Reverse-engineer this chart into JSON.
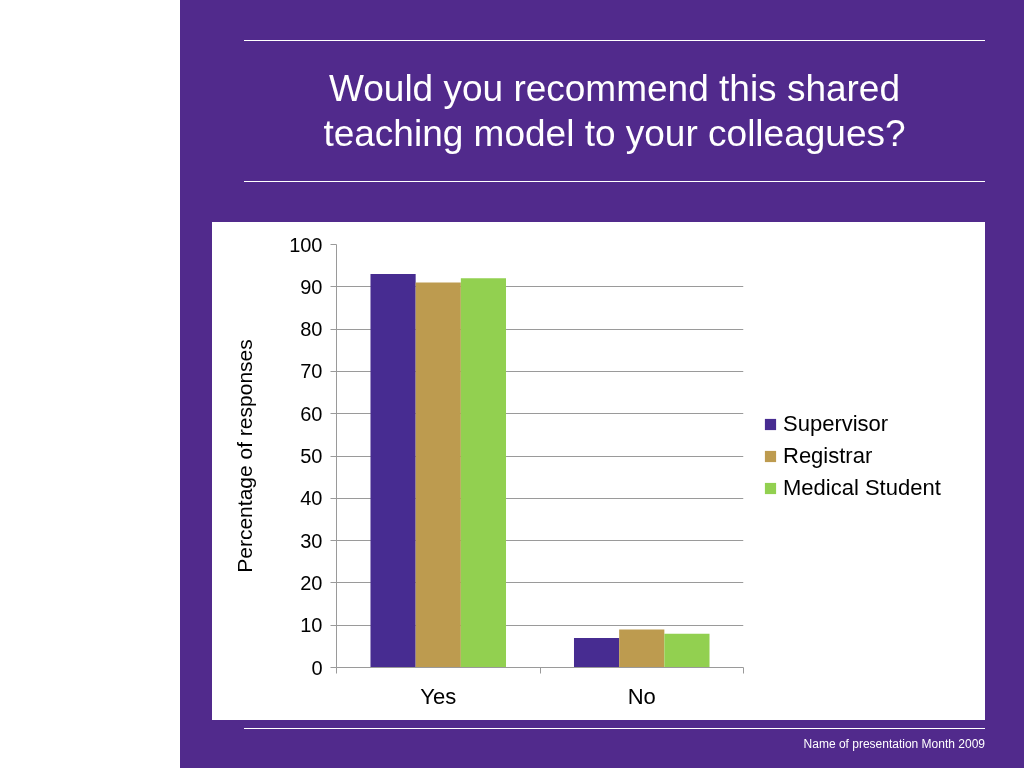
{
  "chart_data": {
    "type": "bar",
    "title": "Would you recommend this shared teaching model to your colleagues?",
    "categories": [
      "Yes",
      "No"
    ],
    "series": [
      {
        "name": "Supervisor",
        "color": "#472c91",
        "values": [
          93,
          7
        ]
      },
      {
        "name": "Registrar",
        "color": "#bd9b4f",
        "values": [
          91,
          9
        ]
      },
      {
        "name": "Medical Student",
        "color": "#92d050",
        "values": [
          92,
          8
        ]
      }
    ],
    "ylabel": "Percentage of responses",
    "ylim": [
      0,
      100
    ],
    "yticks": [
      0,
      10,
      20,
      30,
      40,
      50,
      60,
      70,
      80,
      90,
      100
    ],
    "grid": "y",
    "legend": "right",
    "annotations": [
      "Name of presentation Month 2009"
    ]
  }
}
